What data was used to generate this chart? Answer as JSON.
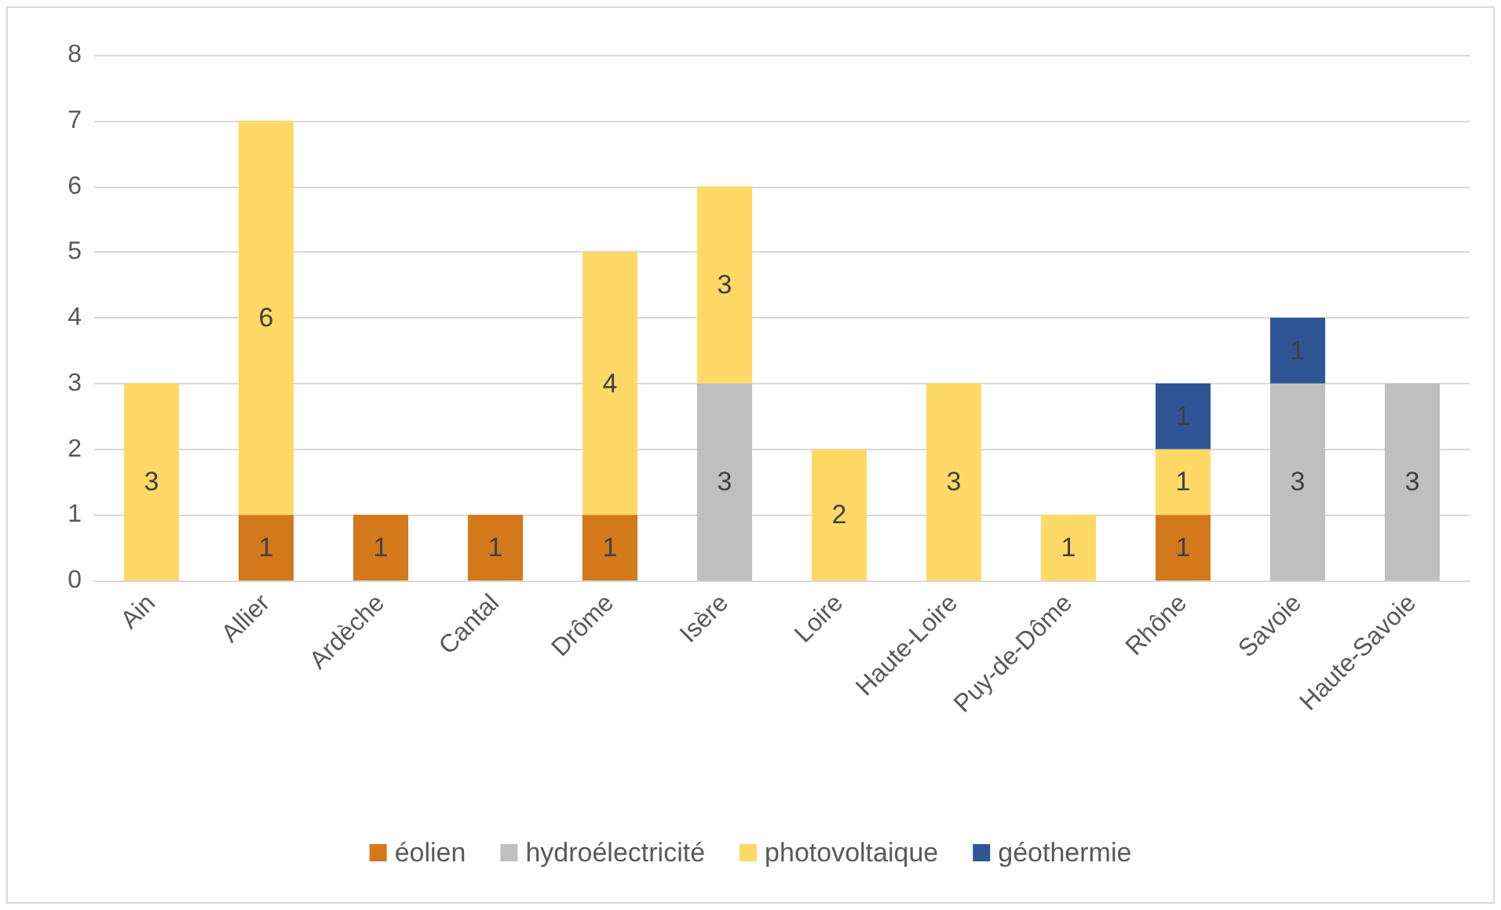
{
  "chart_data": {
    "type": "bar",
    "stacked": true,
    "categories": [
      "Ain",
      "Allier",
      "Ardèche",
      "Cantal",
      "Drôme",
      "Isère",
      "Loire",
      "Haute-Loire",
      "Puy-de-Dôme",
      "Rhône",
      "Savoie",
      "Haute-Savoie"
    ],
    "series": [
      {
        "name": "éolien",
        "color": "#d4781c",
        "values": [
          null,
          1,
          1,
          1,
          1,
          null,
          null,
          null,
          null,
          1,
          null,
          null
        ]
      },
      {
        "name": "hydroélectricité",
        "color": "#bfbfbf",
        "values": [
          null,
          null,
          null,
          null,
          null,
          3,
          null,
          null,
          null,
          null,
          3,
          3
        ]
      },
      {
        "name": "photovoltaique",
        "color": "#ffd966",
        "values": [
          3,
          6,
          null,
          null,
          4,
          3,
          2,
          3,
          1,
          1,
          null,
          null
        ]
      },
      {
        "name": "géothermie",
        "color": "#2f5597",
        "values": [
          null,
          null,
          null,
          null,
          null,
          null,
          null,
          null,
          null,
          1,
          1,
          null
        ]
      }
    ],
    "ylim": [
      0,
      8
    ],
    "yticks": [
      0,
      1,
      2,
      3,
      4,
      5,
      6,
      7,
      8
    ],
    "grid": "y",
    "legend": "bottom",
    "data_labels": true
  }
}
